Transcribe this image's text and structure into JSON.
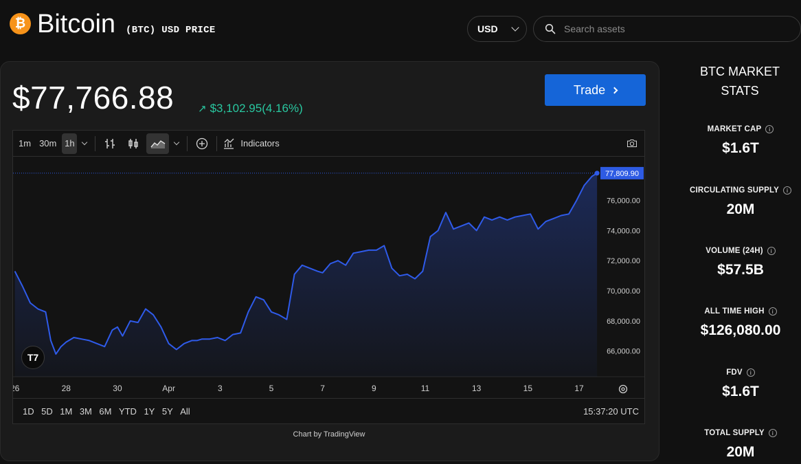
{
  "header": {
    "coin_name": "Bitcoin",
    "coin_sub": "(BTC) USD PRICE",
    "logo_glyph": "₿",
    "currency": "USD",
    "search_placeholder": "Search assets"
  },
  "price_card": {
    "price": "$77,766.88",
    "change": "$3,102.95(4.16%)",
    "trade_label": "Trade",
    "change_color": "#29c7a0",
    "trade_color": "#1565d8"
  },
  "toolbar": {
    "intervals": [
      "1m",
      "30m",
      "1h"
    ],
    "active_interval": "1h",
    "indicators_label": "Indicators"
  },
  "range_bar": {
    "ranges": [
      "1D",
      "5D",
      "1M",
      "3M",
      "6M",
      "YTD",
      "1Y",
      "5Y",
      "All"
    ],
    "time": "15:37:20 UTC"
  },
  "credit": "Chart by TradingView",
  "chart_data": {
    "type": "area",
    "line_color": "#2f5bea",
    "last_value": 77809.9,
    "last_label": "77,809.90",
    "y_ticks": [
      66000,
      68000,
      70000,
      72000,
      74000,
      76000
    ],
    "y_tick_labels": [
      "66,000.00",
      "68,000.00",
      "70,000.00",
      "72,000.00",
      "74,000.00",
      "76,000.00"
    ],
    "ylim": [
      64300,
      78900
    ],
    "xlim": [
      25.9,
      18.3
    ],
    "x_ticks": [
      26,
      28,
      30,
      32,
      34,
      36,
      38,
      40,
      42,
      44,
      46,
      48
    ],
    "x_tick_labels": [
      "26",
      "28",
      "30",
      "Apr",
      "3",
      "5",
      "7",
      "9",
      "11",
      "13",
      "15",
      "17"
    ],
    "x": [
      26.0,
      26.3,
      26.6,
      26.9,
      27.2,
      27.4,
      27.6,
      27.8,
      28.0,
      28.3,
      28.6,
      28.9,
      29.2,
      29.5,
      29.8,
      30.0,
      30.2,
      30.5,
      30.8,
      31.1,
      31.4,
      31.7,
      32.0,
      32.3,
      32.6,
      32.9,
      33.1,
      33.3,
      33.6,
      33.9,
      34.2,
      34.5,
      34.8,
      35.1,
      35.4,
      35.7,
      36.0,
      36.3,
      36.6,
      36.9,
      37.2,
      37.5,
      37.8,
      38.0,
      38.3,
      38.6,
      38.9,
      39.2,
      39.5,
      39.8,
      40.1,
      40.4,
      40.7,
      41.0,
      41.3,
      41.6,
      41.9,
      42.2,
      42.5,
      42.8,
      43.1,
      43.4,
      43.7,
      44.0,
      44.3,
      44.6,
      44.9,
      45.2,
      45.5,
      45.8,
      46.1,
      46.4,
      46.7,
      47.0,
      47.3,
      47.6,
      47.9,
      48.2,
      48.5,
      48.7
    ],
    "y": [
      71300,
      70300,
      69200,
      68800,
      68600,
      66700,
      65800,
      66300,
      66600,
      66900,
      66800,
      66700,
      66500,
      66300,
      67400,
      67600,
      67000,
      68000,
      67900,
      68800,
      68400,
      67600,
      66500,
      66100,
      66500,
      66700,
      66700,
      66800,
      66800,
      66900,
      66700,
      67100,
      67200,
      68600,
      69600,
      69400,
      68600,
      68400,
      68100,
      71100,
      71700,
      71500,
      71300,
      71200,
      71800,
      72000,
      71700,
      72500,
      72600,
      72700,
      72700,
      73000,
      71500,
      71000,
      71100,
      70800,
      71300,
      73600,
      74000,
      75200,
      74100,
      74300,
      74500,
      74000,
      74900,
      74700,
      74900,
      74700,
      74900,
      75000,
      75100,
      74100,
      74600,
      74800,
      75000,
      75100,
      76000,
      77000,
      77600,
      77809.9
    ]
  },
  "stats": {
    "title": "BTC MARKET STATS",
    "items": [
      {
        "label": "MARKET CAP",
        "value": "$1.6T"
      },
      {
        "label": "CIRCULATING SUPPLY",
        "value": "20M"
      },
      {
        "label": "VOLUME (24H)",
        "value": "$57.5B"
      },
      {
        "label": "ALL TIME HIGH",
        "value": "$126,080.00"
      },
      {
        "label": "FDV",
        "value": "$1.6T"
      },
      {
        "label": "TOTAL SUPPLY",
        "value": "20M"
      }
    ]
  }
}
